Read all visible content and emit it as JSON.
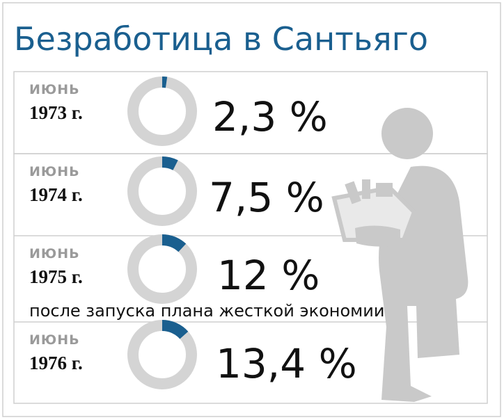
{
  "title": "Безработица в Сантьяго",
  "note": "после запуска плана жесткой экономии",
  "chart_data": [
    {
      "type": "donut",
      "month": "ИЮНЬ",
      "year": "1973 г.",
      "values": [
        2.3
      ],
      "value_labels": [
        "2,3 %"
      ],
      "color": "#1a5f8f",
      "track_color": "#d4d4d4"
    },
    {
      "type": "donut",
      "month": "ИЮНЬ",
      "year": "1974 г.",
      "values": [
        7.5
      ],
      "value_labels": [
        "7,5 %"
      ],
      "color": "#1a5f8f",
      "track_color": "#d4d4d4"
    },
    {
      "type": "donut",
      "month": "ИЮНЬ",
      "year": "1975 г.",
      "values": [
        12
      ],
      "value_labels": [
        "12 %"
      ],
      "color": "#1a5f8f",
      "track_color": "#d4d4d4"
    },
    {
      "type": "donut",
      "month": "ИЮНЬ",
      "year": "1976 г.",
      "values": [
        13.4
      ],
      "value_labels": [
        "13,4 %"
      ],
      "color": "#1a5f8f",
      "track_color": "#d4d4d4"
    }
  ]
}
